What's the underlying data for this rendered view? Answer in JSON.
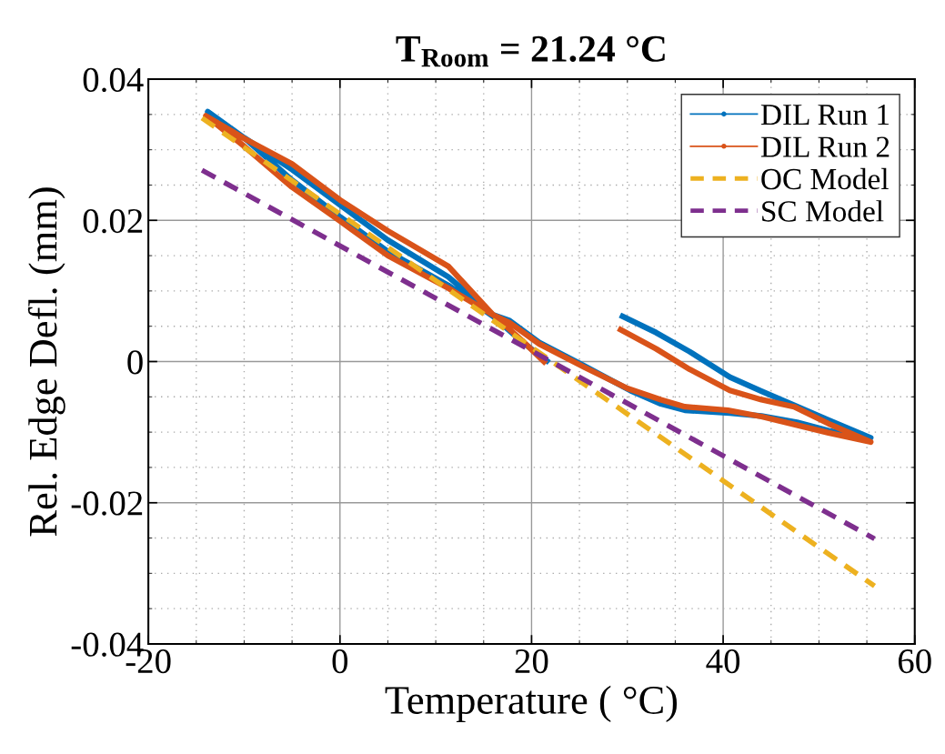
{
  "chart_data": {
    "type": "line",
    "title": "T$_{Room}$ = 21.24 °C",
    "xlabel": "Temperature ( °C)",
    "ylabel": "Rel. Edge Defl. (mm)",
    "xlim": [
      -20,
      60
    ],
    "xticks": [
      -20,
      0,
      20,
      40,
      60
    ],
    "ylim": [
      -0.04,
      0.04
    ],
    "yticks": [
      -0.04,
      -0.02,
      0,
      0.02,
      0.04
    ],
    "grid": true,
    "legend": "top right",
    "series": [
      {
        "name": "DIL Run 1",
        "color": "#0072bd",
        "marker": "circle",
        "line_style": "solid",
        "x": [
          29.5,
          33,
          36.5,
          40.7,
          44,
          47.1,
          51,
          55.4,
          51,
          47.7,
          44,
          40.7,
          36,
          33.5,
          30.3,
          25.5,
          20.8,
          17.7,
          16,
          11.3,
          5,
          0,
          -5,
          -10,
          -13.8,
          -10,
          -5,
          0,
          5,
          11.3,
          16,
          19,
          21.6
        ],
        "values": [
          0.0064,
          0.0041,
          0.0014,
          -0.0022,
          -0.0042,
          -0.006,
          -0.0083,
          -0.0108,
          -0.0098,
          -0.0086,
          -0.0077,
          -0.0073,
          -0.0069,
          -0.006,
          -0.0041,
          -0.0006,
          0.0027,
          0.0058,
          0.0066,
          0.012,
          0.0172,
          0.0222,
          0.0272,
          0.0317,
          0.0354,
          0.0317,
          0.0257,
          0.0205,
          0.0156,
          0.0108,
          0.0064,
          0.0028,
          0.0001
        ]
      },
      {
        "name": "DIL Run 2",
        "color": "#d95319",
        "marker": "circle",
        "line_style": "solid",
        "x": [
          29.3,
          33,
          36.5,
          40.7,
          44,
          47.4,
          51,
          55.4,
          51,
          47.7,
          44,
          40.5,
          36,
          33.5,
          30,
          25.5,
          20.8,
          17.7,
          16,
          11.3,
          5,
          0,
          -5,
          -10,
          -14,
          -10,
          -5,
          0,
          5,
          11.3,
          16,
          19,
          21.3
        ],
        "values": [
          0.0045,
          0.0018,
          -0.0011,
          -0.0041,
          -0.0054,
          -0.0064,
          -0.0088,
          -0.0114,
          -0.0101,
          -0.009,
          -0.0078,
          -0.0069,
          -0.0064,
          -0.0054,
          -0.0038,
          -0.0008,
          0.0025,
          0.0055,
          0.0066,
          0.0135,
          0.0185,
          0.0229,
          0.028,
          0.0316,
          0.0348,
          0.0305,
          0.0247,
          0.0199,
          0.015,
          0.0104,
          0.0066,
          0.003,
          0.0
        ]
      },
      {
        "name": "OC Model",
        "color": "#edb120",
        "marker": "none",
        "line_style": "dashed",
        "x": [
          -14.4,
          55.8
        ],
        "values": [
          0.0345,
          -0.0318
        ]
      },
      {
        "name": "SC Model",
        "color": "#7e2f8e",
        "marker": "none",
        "line_style": "dashed",
        "x": [
          -14.4,
          55.8
        ],
        "values": [
          0.0271,
          -0.0251
        ]
      }
    ]
  }
}
